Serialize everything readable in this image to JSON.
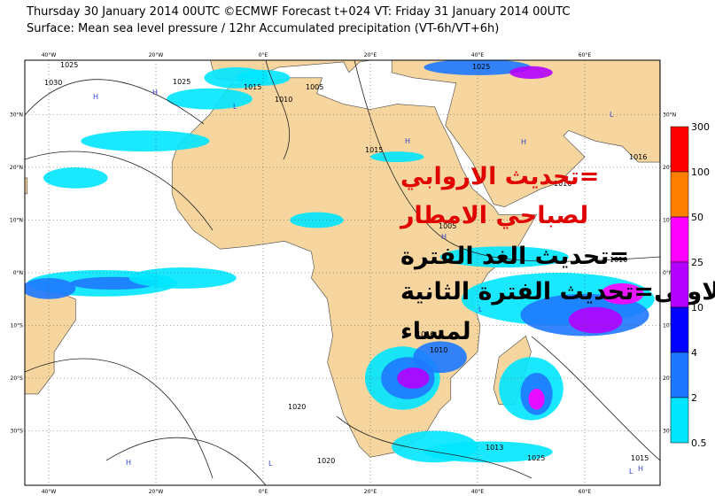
{
  "header": {
    "line1": "Thursday 30 January 2014 00UTC ©ECMWF Forecast t+024 VT: Friday 31 January 2014 00UTC",
    "line2": "Surface: Mean sea level pressure / 12hr Accumulated precipitation (VT-6h/VT+6h)"
  },
  "map": {
    "lon_labels": [
      "40°W",
      "20°W",
      "0°E",
      "20°E",
      "40°E",
      "60°E"
    ],
    "lat_labels": [
      "30°N",
      "20°N",
      "10°N",
      "0°N",
      "10°S",
      "20°S",
      "30°S"
    ],
    "isobar_labels": [
      "1025",
      "1030",
      "1025",
      "1005",
      "1015",
      "1010",
      "1015",
      "1016",
      "1005",
      "1010",
      "1010",
      "1016",
      "1010",
      "1020",
      "1013",
      "1020",
      "1025",
      "1015",
      "1025"
    ],
    "pressure_centres": [
      "H",
      "H",
      "L",
      "H",
      "H",
      "L",
      "H",
      "L",
      "H",
      "H",
      "L",
      "L"
    ]
  },
  "overlay": {
    "lines": [
      "=تحديث الاروابي",
      "لصباحي الامطار",
      "=تحديث الغد الفترة",
      "لاولى=تحديث الفترة الثانية",
      "لمساء"
    ]
  },
  "legend": {
    "levels": [
      300,
      100,
      50,
      25,
      10,
      4,
      2,
      0.5
    ],
    "colors": [
      "#ff0000",
      "#ff8000",
      "#ff00ff",
      "#b400ff",
      "#0000ff",
      "#1e78ff",
      "#00e6ff"
    ]
  }
}
